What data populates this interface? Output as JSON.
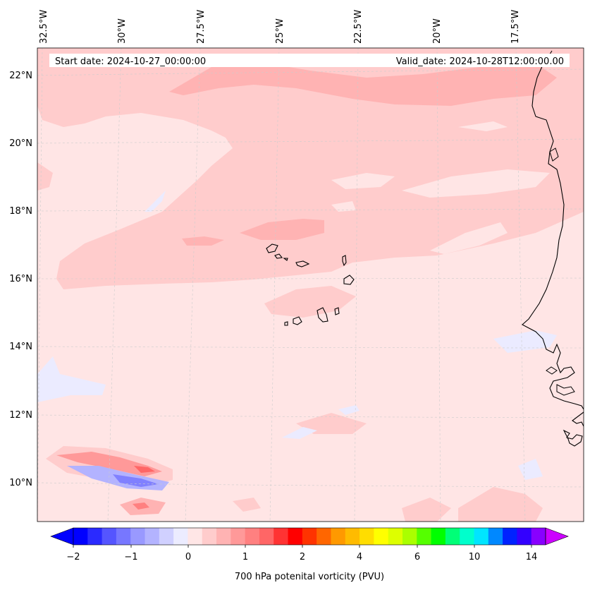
{
  "map": {
    "start_date": "Start date: 2024-10-27_00:00:00",
    "valid_date": "Valid_date: 2024-10-28T12:00:00.00",
    "lon_labels": [
      "32.5°W",
      "30°W",
      "27.5°W",
      "25°W",
      "22.5°W",
      "20°W",
      "17.5°W"
    ],
    "lat_labels": [
      "22°N",
      "20°N",
      "18°N",
      "16°N",
      "14°N",
      "12°N",
      "10°N"
    ],
    "field": "700 hPa potenital vorticity",
    "colors": {
      "background": "#ffe5e5",
      "light_pink": "#ffcccc",
      "medium_pink": "#ffb3b3",
      "salmon": "#ff9999",
      "light_blue": "#ebebff",
      "blue_mid": "#b3b3ff",
      "blue_dark": "#8080ff",
      "coast": "#000000"
    }
  },
  "colorbar": {
    "label": "700 hPa potenital vorticity (PVU)",
    "ticks": [
      "−2",
      "−1",
      "0",
      "1",
      "2",
      "4",
      "6",
      "10",
      "14"
    ],
    "colors": [
      "#0000ff",
      "#2a2aff",
      "#5555ff",
      "#7777ff",
      "#9999ff",
      "#b3b3ff",
      "#d0d0ff",
      "#ececff",
      "#ffe6e6",
      "#ffcccc",
      "#ffb3b3",
      "#ff9999",
      "#ff8080",
      "#ff6666",
      "#ff3333",
      "#ff0000",
      "#ff3300",
      "#ff6600",
      "#ff9900",
      "#ffbb00",
      "#ffdd00",
      "#ffff00",
      "#ddff00",
      "#aaff00",
      "#55ff00",
      "#00ff00",
      "#00ff77",
      "#00ffcc",
      "#00e5ff",
      "#0088ff",
      "#0022ff",
      "#3300ff",
      "#8800ff"
    ],
    "extend_min_color": "#0000ff",
    "extend_max_color": "#cc00ff"
  }
}
